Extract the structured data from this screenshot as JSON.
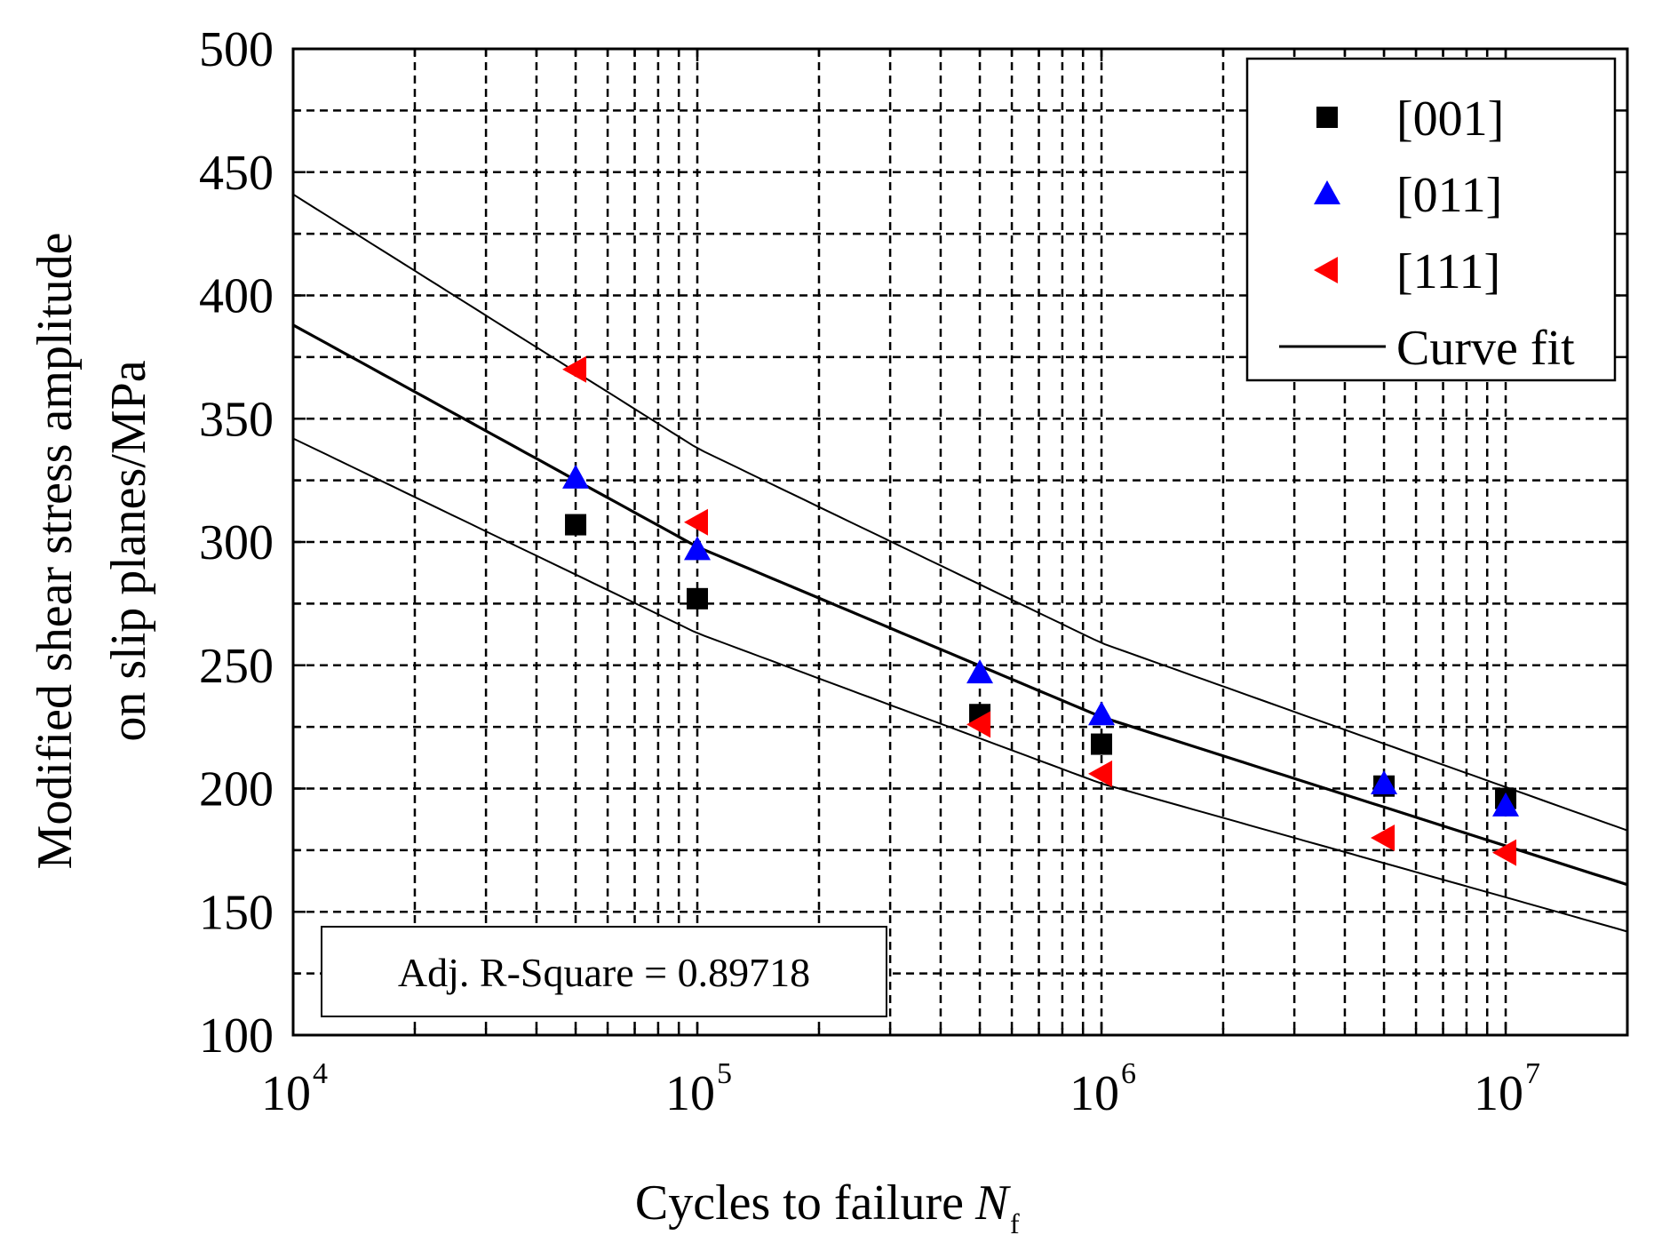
{
  "chart_data": {
    "type": "scatter",
    "xscale": "log",
    "xlim": [
      10000,
      20000000
    ],
    "ylim": [
      100,
      500
    ],
    "xlabel": "Cycles to failure",
    "xlabel_symbol": "N",
    "xlabel_subscript": "f",
    "ylabel_line1": "Modified shear stress amplitude",
    "ylabel_line2": "on slip planes/MPa",
    "y_ticks": [
      100,
      150,
      200,
      250,
      300,
      350,
      400,
      450,
      500
    ],
    "x_major_ticks": [
      {
        "value": 10000,
        "base": "10",
        "exp": "4"
      },
      {
        "value": 100000,
        "base": "10",
        "exp": "5"
      },
      {
        "value": 1000000,
        "base": "10",
        "exp": "6"
      },
      {
        "value": 10000000,
        "base": "10",
        "exp": "7"
      }
    ],
    "grid": true,
    "series": [
      {
        "name": "[001]",
        "marker": "square",
        "color": "#000000",
        "points": [
          [
            50000,
            307
          ],
          [
            100000,
            277
          ],
          [
            500000,
            230
          ],
          [
            1000000,
            218
          ],
          [
            5000000,
            201
          ],
          [
            10000000,
            196
          ]
        ]
      },
      {
        "name": "[011]",
        "marker": "triangle-up",
        "color": "#0000ff",
        "points": [
          [
            50000,
            326
          ],
          [
            100000,
            297
          ],
          [
            500000,
            247
          ],
          [
            1000000,
            230
          ],
          [
            5000000,
            202
          ],
          [
            10000000,
            193
          ]
        ]
      },
      {
        "name": "[111]",
        "marker": "triangle-left",
        "color": "#ff0000",
        "points": [
          [
            50000,
            370
          ],
          [
            100000,
            308
          ],
          [
            500000,
            226
          ],
          [
            1000000,
            206
          ],
          [
            5000000,
            180
          ],
          [
            10000000,
            174
          ]
        ]
      }
    ],
    "curve_fit": {
      "name": "Curve fit",
      "color": "#000000",
      "lines": [
        {
          "name": "fit",
          "points": [
            [
              10000,
              388
            ],
            [
              100000,
              298
            ],
            [
              1000000,
              229
            ],
            [
              20000000,
              161
            ]
          ]
        },
        {
          "name": "upper-bound",
          "points": [
            [
              10000,
              441
            ],
            [
              100000,
              338
            ],
            [
              1000000,
              259
            ],
            [
              20000000,
              183
            ]
          ]
        },
        {
          "name": "lower-bound",
          "points": [
            [
              10000,
              342
            ],
            [
              100000,
              263
            ],
            [
              1000000,
              202
            ],
            [
              20000000,
              142
            ]
          ]
        }
      ]
    },
    "legend": {
      "position": "top-right",
      "entries": [
        "[001]",
        "[011]",
        "[111]",
        "Curve fit"
      ]
    },
    "annotation": {
      "text": "Adj. R-Square = 0.89718",
      "position": "bottom-left"
    }
  }
}
